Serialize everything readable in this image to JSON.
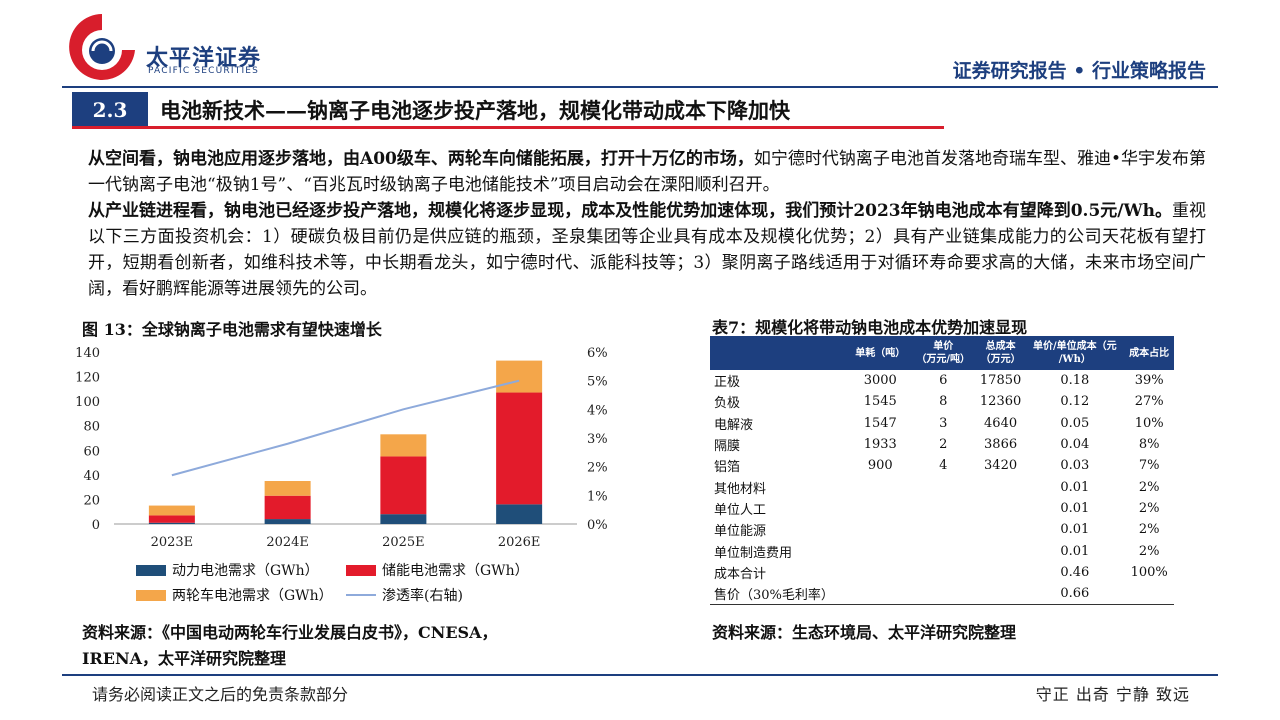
{
  "header": {
    "logo_cn": "太平洋证券",
    "logo_en": "PACIFIC SECURITIES",
    "report_type": "证券研究报告 • 行业策略报告"
  },
  "section": {
    "number": "2.3",
    "title": "电池新技术——钠离子电池逐步投产落地，规模化带动成本下降加快"
  },
  "body": {
    "p1_bold": "从空间看，钠电池应用逐步落地，由A00级车、两轮车向储能拓展，打开十万亿的市场，",
    "p1_rest": "如宁德时代钠离子电池首发落地奇瑞车型、雅迪•华宇发布第一代钠离子电池“极钠1号”、“百兆瓦时级钠离子电池储能技术”项目启动会在溧阳顺利召开。",
    "p2_bold": "从产业链进程看，钠电池已经逐步投产落地，规模化将逐步显现，成本及性能优势加速体现，我们预计2023年钠电池成本有望降到0.5元/Wh。",
    "p2_rest": "重视以下三方面投资机会：1）硬碳负极目前仍是供应链的瓶颈，圣泉集团等企业具有成本及规模化优势；2）具有产业链集成能力的公司天花板有望打开，短期看创新者，如维科技术等，中长期看龙头，如宁德时代、派能科技等；3）聚阴离子路线适用于对循环寿命要求高的大储，未来市场空间广阔，看好鹏辉能源等进展领先的公司。"
  },
  "figure": {
    "title": "图 13：全球钠离子电池需求有望快速增长",
    "source_line1": "资料来源：《中国电动两轮车行业发展白皮书》，CNESA，",
    "source_line2": "IRENA，太平洋研究院整理"
  },
  "chart_data": {
    "type": "bar",
    "stacked": true,
    "categories": [
      "2023E",
      "2024E",
      "2025E",
      "2026E"
    ],
    "series": [
      {
        "name": "动力电池需求（GWh）",
        "color": "#1f4e79",
        "values": [
          1,
          4,
          8,
          16
        ]
      },
      {
        "name": "储能电池需求（GWh）",
        "color": "#e31b2b",
        "values": [
          6,
          19,
          47,
          91
        ]
      },
      {
        "name": "两轮车电池需求（GWh）",
        "color": "#f4a64a",
        "values": [
          8,
          12,
          18,
          26
        ]
      }
    ],
    "line_series": {
      "name": "渗透率(右轴)",
      "color": "#8eaadb",
      "axis": "right",
      "values": [
        1.7,
        2.8,
        4.0,
        5.0
      ]
    },
    "y_left": {
      "min": 0,
      "max": 140,
      "ticks": [
        0,
        20,
        40,
        60,
        80,
        100,
        120,
        140
      ]
    },
    "y_right": {
      "min": 0,
      "max": 6,
      "ticks": [
        "0%",
        "1%",
        "2%",
        "3%",
        "4%",
        "5%",
        "6%"
      ]
    },
    "legend_position": "bottom",
    "grid": false
  },
  "table": {
    "title": "表7：规模化将带动钠电池成本优势加速显现",
    "headers": [
      "",
      "单耗（吨）",
      "单价\n（万元/吨）",
      "总成本\n（万元）",
      "单价/单位成本（元\n/Wh）",
      "成本占比"
    ],
    "rows": [
      [
        "正极",
        "3000",
        "6",
        "17850",
        "0.18",
        "39%"
      ],
      [
        "负极",
        "1545",
        "8",
        "12360",
        "0.12",
        "27%"
      ],
      [
        "电解液",
        "1547",
        "3",
        "4640",
        "0.05",
        "10%"
      ],
      [
        "隔膜",
        "1933",
        "2",
        "3866",
        "0.04",
        "8%"
      ],
      [
        "铝箔",
        "900",
        "4",
        "3420",
        "0.03",
        "7%"
      ],
      [
        "其他材料",
        "",
        "",
        "",
        "0.01",
        "2%"
      ],
      [
        "单位人工",
        "",
        "",
        "",
        "0.01",
        "2%"
      ],
      [
        "单位能源",
        "",
        "",
        "",
        "0.01",
        "2%"
      ],
      [
        "单位制造费用",
        "",
        "",
        "",
        "0.01",
        "2%"
      ],
      [
        "成本合计",
        "",
        "",
        "",
        "0.46",
        "100%"
      ],
      [
        "售价（30%毛利率）",
        "",
        "",
        "",
        "0.66",
        ""
      ]
    ],
    "source": "资料来源：生态环境局、太平洋研究院整理"
  },
  "footer": {
    "disclaimer": "请务必阅读正文之后的免责条款部分",
    "motto": "守正 出奇 宁静 致远"
  }
}
